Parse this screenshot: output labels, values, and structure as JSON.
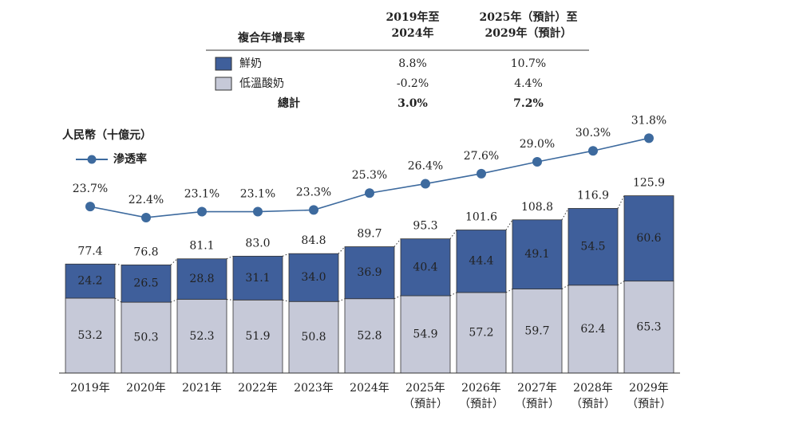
{
  "chart_data": {
    "type": "bar",
    "stacked": true,
    "ylabel": "人民幣（十億元）",
    "categories": [
      "2019年",
      "2020年",
      "2021年",
      "2022年",
      "2023年",
      "2024年",
      "2025年（預計）",
      "2026年（預計）",
      "2027年（預計）",
      "2028年（預計）",
      "2029年（預計）"
    ],
    "ylim": [
      0,
      180
    ],
    "y2lim": [
      4,
      34
    ],
    "series": [
      {
        "name": "低溫酸奶",
        "color": "#c6c9d8",
        "values": [
          53.2,
          50.3,
          52.3,
          51.9,
          50.8,
          52.8,
          54.9,
          57.2,
          59.7,
          62.4,
          65.3
        ],
        "value_labels": [
          "53.2",
          "50.3",
          "52.3",
          "51.9",
          "50.8",
          "52.8",
          "54.9",
          "57.2",
          "59.7",
          "62.4",
          "65.3"
        ]
      },
      {
        "name": "鮮奶",
        "color": "#3f5f9b",
        "values": [
          24.2,
          26.5,
          28.8,
          31.1,
          34.0,
          36.9,
          40.4,
          44.4,
          49.1,
          54.5,
          60.6
        ],
        "value_labels": [
          "24.2",
          "26.5",
          "28.8",
          "31.1",
          "34.0",
          "36.9",
          "40.4",
          "44.4",
          "49.1",
          "54.5",
          "60.6"
        ]
      },
      {
        "name": "滲透率",
        "type": "line",
        "axis": "y2",
        "color": "#3d6a9e",
        "values": [
          23.7,
          22.4,
          23.1,
          23.1,
          23.3,
          25.3,
          26.4,
          27.6,
          29.0,
          30.3,
          31.8
        ],
        "value_labels": [
          "23.7%",
          "22.4%",
          "23.1%",
          "23.1%",
          "23.3%",
          "25.3%",
          "26.4%",
          "27.6%",
          "29.0%",
          "30.3%",
          "31.8%"
        ]
      }
    ],
    "totals": {
      "values": [
        77.4,
        76.8,
        81.1,
        83.0,
        84.8,
        89.7,
        95.3,
        101.6,
        108.8,
        116.9,
        125.9
      ],
      "value_labels": [
        "77.4",
        "76.8",
        "81.1",
        "83.0",
        "84.8",
        "89.7",
        "95.3",
        "101.6",
        "108.8",
        "116.9",
        "125.9"
      ]
    },
    "table": {
      "title": "複合年增長率",
      "columns": [
        "2019年至2024年",
        "2025年（預計）至2029年（預計）"
      ],
      "rows": [
        [
          "8.8%",
          "10.7%"
        ],
        [
          "-0.2%",
          "4.4%"
        ]
      ],
      "total_label": "總計",
      "total": [
        "3.0%",
        "7.2%"
      ]
    }
  }
}
